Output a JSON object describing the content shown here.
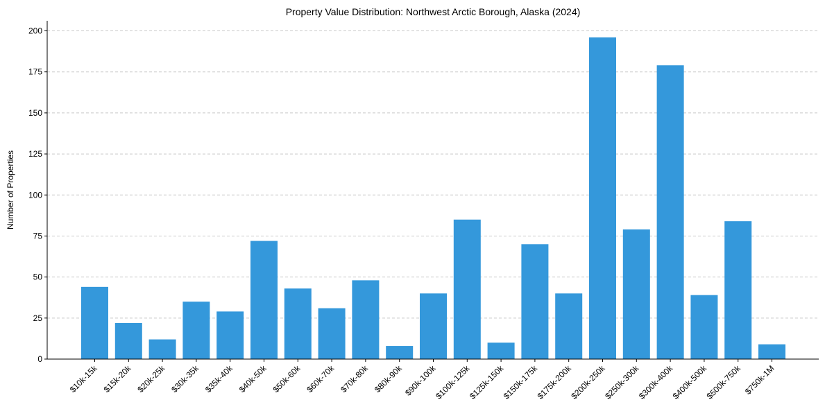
{
  "chart_data": {
    "type": "bar",
    "title": "Property Value Distribution: Northwest Arctic Borough, Alaska (2024)",
    "xlabel": "",
    "ylabel": "Number of Properties",
    "ylim": [
      0,
      206
    ],
    "yticks": [
      0,
      25,
      50,
      75,
      100,
      125,
      150,
      175,
      200
    ],
    "grid": "y-dashed",
    "bar_color": "#3498db",
    "categories": [
      "$10k-15k",
      "$15k-20k",
      "$20k-25k",
      "$30k-35k",
      "$35k-40k",
      "$40k-50k",
      "$50k-60k",
      "$60k-70k",
      "$70k-80k",
      "$80k-90k",
      "$90k-100k",
      "$100k-125k",
      "$125k-150k",
      "$150k-175k",
      "$175k-200k",
      "$200k-250k",
      "$250k-300k",
      "$300k-400k",
      "$400k-500k",
      "$500k-750k",
      "$750k-1M"
    ],
    "values": [
      44,
      22,
      12,
      35,
      29,
      72,
      43,
      31,
      48,
      8,
      40,
      85,
      10,
      70,
      40,
      196,
      79,
      179,
      39,
      84,
      9
    ]
  }
}
